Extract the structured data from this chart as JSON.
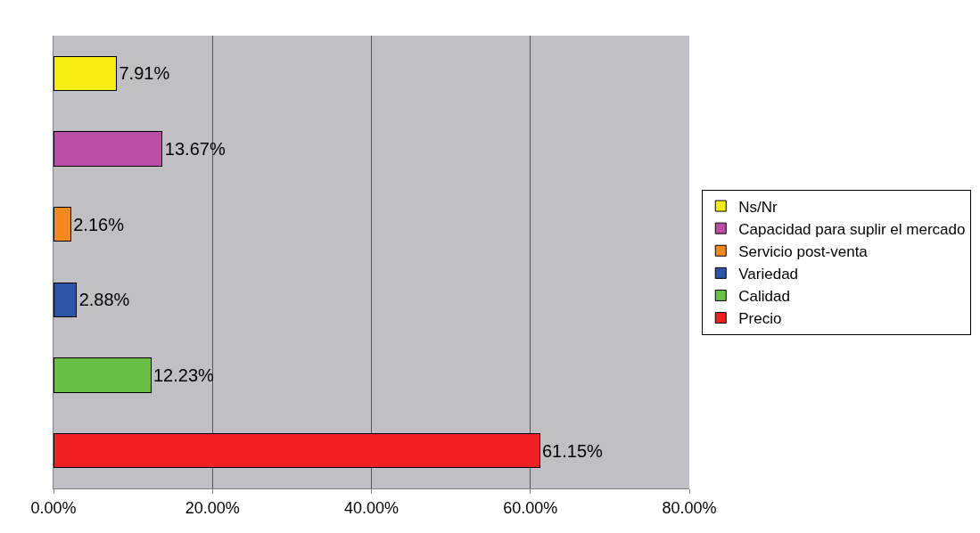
{
  "chart_data": {
    "type": "bar",
    "orientation": "horizontal",
    "stacked": true,
    "categories": [
      null,
      null,
      null,
      null,
      null,
      null
    ],
    "series": [
      {
        "name": "Ns/Nr",
        "color": "#f5ee10",
        "values": [
          7.91,
          null,
          null,
          null,
          null,
          null
        ],
        "value_labels": [
          "7.91%",
          null,
          null,
          null,
          null,
          null
        ]
      },
      {
        "name": "Capacidad para suplir el mercado",
        "color": "#b94fa6",
        "values": [
          null,
          13.67,
          null,
          null,
          null,
          null
        ],
        "value_labels": [
          null,
          "13.67%",
          null,
          null,
          null,
          null
        ]
      },
      {
        "name": "Servicio post-venta",
        "color": "#f28a20",
        "values": [
          null,
          null,
          2.16,
          null,
          null,
          null
        ],
        "value_labels": [
          null,
          null,
          "2.16%",
          null,
          null,
          null
        ]
      },
      {
        "name": "Variedad",
        "color": "#2d55a6",
        "values": [
          null,
          null,
          null,
          2.88,
          null,
          null
        ],
        "value_labels": [
          null,
          null,
          null,
          "2.88%",
          null,
          null
        ]
      },
      {
        "name": "Calidad",
        "color": "#6abf45",
        "values": [
          null,
          null,
          null,
          null,
          12.23,
          null
        ],
        "value_labels": [
          null,
          null,
          null,
          null,
          "12.23%",
          null
        ]
      },
      {
        "name": "Precio",
        "color": "#ee2024",
        "values": [
          null,
          null,
          null,
          null,
          null,
          61.15
        ],
        "value_labels": [
          null,
          null,
          null,
          null,
          null,
          "61.15%"
        ]
      }
    ],
    "xlim": [
      0,
      80
    ],
    "xticks": [
      {
        "value": 0,
        "label": "0.00%"
      },
      {
        "value": 20,
        "label": "20.00%"
      },
      {
        "value": 40,
        "label": "40.00%"
      },
      {
        "value": 60,
        "label": "60.00%"
      },
      {
        "value": 80,
        "label": "80.00%"
      }
    ],
    "grid": "x",
    "legend": "right"
  }
}
